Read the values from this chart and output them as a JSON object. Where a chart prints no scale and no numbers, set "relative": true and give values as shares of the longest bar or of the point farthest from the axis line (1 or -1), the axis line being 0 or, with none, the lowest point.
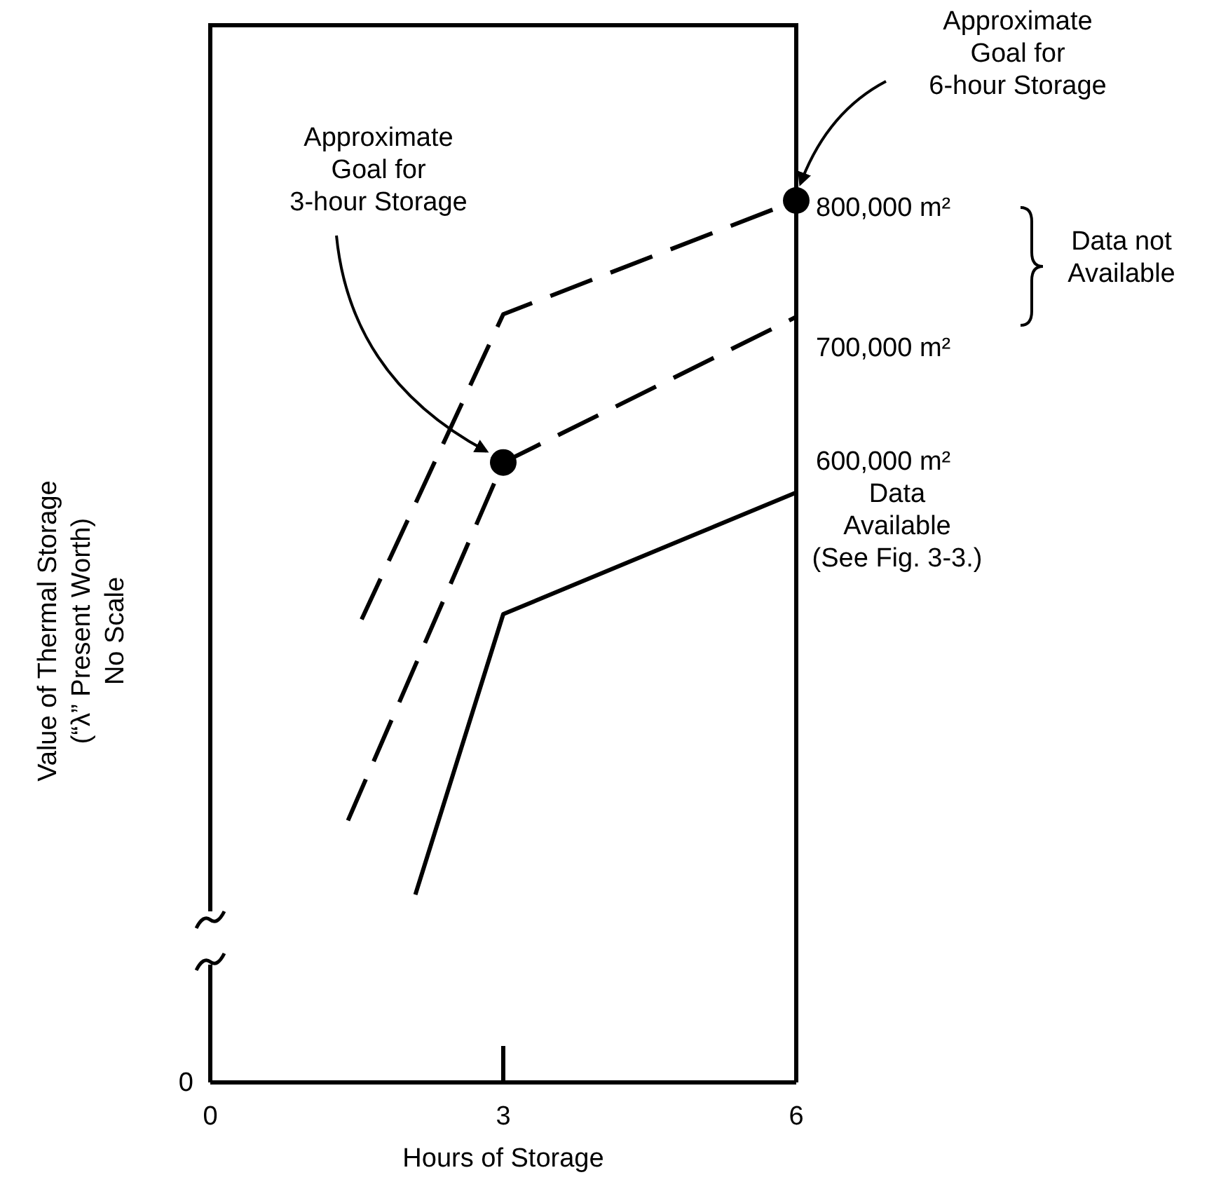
{
  "chart_data": {
    "type": "line",
    "relative": true,
    "xlabel": "Hours of Storage",
    "ylabel": "Value of Thermal Storage\n(“λ” Present Worth)\nNo Scale",
    "xlim": [
      0,
      6
    ],
    "xticks": [
      0,
      3,
      6
    ],
    "grid": false,
    "legend": false,
    "series": [
      {
        "name": "800,000 m²",
        "color": "#000000",
        "line_style": "dashed",
        "marker": "none",
        "x": [
          1.55,
          3,
          6
        ],
        "values": [
          0.525,
          0.871,
          1
        ]
      },
      {
        "name": "700,000 m²",
        "color": "#000000",
        "line_style": "dashed",
        "marker": "none",
        "x": [
          1.41,
          3,
          6
        ],
        "values": [
          0.297,
          0.703,
          0.868
        ]
      },
      {
        "name": "600,000 m²",
        "color": "#000000",
        "line_style": "solid",
        "marker": "none",
        "x": [
          2.1,
          3,
          6
        ],
        "values": [
          0.213,
          0.531,
          0.669
        ]
      },
      {
        "type": "scatter",
        "color": "#000000",
        "marker": "circle",
        "x": [
          3,
          6
        ],
        "values": [
          0.703,
          1
        ]
      }
    ],
    "annotations": [
      "Approximate\nGoal for\n3-hour Storage",
      "Approximate\nGoal for\n6-hour Storage",
      "Data not\nAvailable",
      "Data\nAvailable\n(See Fig. 3-3.)",
      "0"
    ]
  }
}
